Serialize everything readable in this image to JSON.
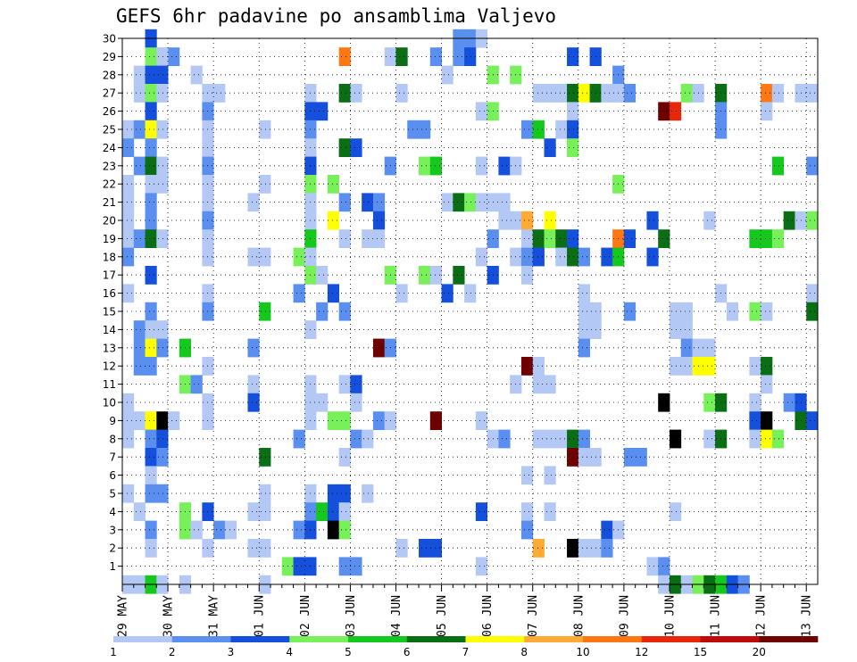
{
  "chart_data": {
    "type": "heatmap",
    "title": "GEFS 6hr padavine po ansamblima Valjevo",
    "x_ticks": [
      "29 MAY",
      "30 MAY",
      "31 MAY",
      "01 JUN",
      "02 JUN",
      "03 JUN",
      "04 JUN",
      "05 JUN",
      "06 JUN",
      "07 JUN",
      "08 JUN",
      "09 JUN",
      "10 JUN",
      "11 JUN",
      "12 JUN",
      "13 JUN"
    ],
    "y_ticks": [
      "1",
      "2",
      "3",
      "4",
      "5",
      "6",
      "7",
      "8",
      "9",
      "10",
      "11",
      "12",
      "13",
      "14",
      "15",
      "16",
      "17",
      "18",
      "19",
      "20",
      "21",
      "22",
      "23",
      "24",
      "25",
      "26",
      "27",
      "28",
      "29",
      "30"
    ],
    "ylim": [
      0,
      30
    ],
    "time_steps": 61,
    "grid": true,
    "colorbar": {
      "labels": [
        "1",
        "2",
        "3",
        "4",
        "5",
        "6",
        "7",
        "8",
        "10",
        "12",
        "15",
        "20"
      ],
      "colors": [
        "#b4c8f5",
        "#5a8ff0",
        "#1450dc",
        "#78f05a",
        "#14c81e",
        "#0a6e14",
        "#ffff00",
        "#ffaa32",
        "#ff7814",
        "#e6280a",
        "#be0a0a",
        "#6e0000"
      ]
    },
    "cells": [
      [
        2,
        30,
        3
      ],
      [
        29,
        30,
        2
      ],
      [
        30,
        30,
        2
      ],
      [
        31,
        30,
        1
      ],
      [
        3,
        29,
        1
      ],
      [
        4,
        29,
        2
      ],
      [
        2,
        29,
        4
      ],
      [
        3,
        29,
        1
      ],
      [
        19,
        29,
        9
      ],
      [
        23,
        29,
        1
      ],
      [
        24,
        29,
        6
      ],
      [
        27,
        29,
        2
      ],
      [
        29,
        29,
        2
      ],
      [
        30,
        29,
        3
      ],
      [
        39,
        29,
        3
      ],
      [
        41,
        29,
        3
      ],
      [
        1,
        28,
        1
      ],
      [
        2,
        28,
        3
      ],
      [
        3,
        28,
        3
      ],
      [
        6,
        28,
        1
      ],
      [
        28,
        28,
        1
      ],
      [
        32,
        28,
        4
      ],
      [
        34,
        28,
        4
      ],
      [
        43,
        28,
        2
      ],
      [
        1,
        27,
        1
      ],
      [
        2,
        27,
        4
      ],
      [
        3,
        27,
        1
      ],
      [
        7,
        27,
        1
      ],
      [
        8,
        27,
        1
      ],
      [
        16,
        27,
        1
      ],
      [
        19,
        27,
        6
      ],
      [
        20,
        27,
        1
      ],
      [
        24,
        27,
        1
      ],
      [
        36,
        27,
        1
      ],
      [
        37,
        27,
        1
      ],
      [
        38,
        27,
        1
      ],
      [
        39,
        27,
        6
      ],
      [
        40,
        27,
        7
      ],
      [
        41,
        27,
        6
      ],
      [
        42,
        27,
        1
      ],
      [
        43,
        27,
        1
      ],
      [
        44,
        27,
        2
      ],
      [
        49,
        27,
        4
      ],
      [
        50,
        27,
        1
      ],
      [
        52,
        27,
        6
      ],
      [
        56,
        27,
        9
      ],
      [
        57,
        27,
        1
      ],
      [
        59,
        27,
        1
      ],
      [
        60,
        27,
        1
      ],
      [
        2,
        26,
        3
      ],
      [
        7,
        26,
        2
      ],
      [
        16,
        26,
        3
      ],
      [
        17,
        26,
        3
      ],
      [
        31,
        26,
        1
      ],
      [
        32,
        26,
        4
      ],
      [
        39,
        26,
        1
      ],
      [
        47,
        26,
        12
      ],
      [
        48,
        26,
        10
      ],
      [
        52,
        26,
        2
      ],
      [
        56,
        26,
        1
      ],
      [
        0,
        25,
        1
      ],
      [
        1,
        25,
        2
      ],
      [
        2,
        25,
        7
      ],
      [
        3,
        25,
        1
      ],
      [
        7,
        25,
        1
      ],
      [
        12,
        25,
        1
      ],
      [
        16,
        25,
        2
      ],
      [
        25,
        25,
        2
      ],
      [
        26,
        25,
        2
      ],
      [
        35,
        25,
        2
      ],
      [
        36,
        25,
        5
      ],
      [
        38,
        25,
        1
      ],
      [
        39,
        25,
        3
      ],
      [
        52,
        25,
        2
      ],
      [
        0,
        24,
        2
      ],
      [
        2,
        24,
        2
      ],
      [
        7,
        24,
        1
      ],
      [
        16,
        24,
        1
      ],
      [
        19,
        24,
        6
      ],
      [
        20,
        24,
        3
      ],
      [
        37,
        24,
        3
      ],
      [
        39,
        24,
        4
      ],
      [
        1,
        23,
        2
      ],
      [
        2,
        23,
        6
      ],
      [
        3,
        23,
        1
      ],
      [
        7,
        23,
        2
      ],
      [
        16,
        23,
        3
      ],
      [
        23,
        23,
        2
      ],
      [
        26,
        23,
        4
      ],
      [
        27,
        23,
        5
      ],
      [
        31,
        23,
        1
      ],
      [
        33,
        23,
        3
      ],
      [
        34,
        23,
        1
      ],
      [
        57,
        23,
        5
      ],
      [
        60,
        23,
        2
      ],
      [
        0,
        22,
        1
      ],
      [
        2,
        22,
        1
      ],
      [
        3,
        22,
        1
      ],
      [
        7,
        22,
        1
      ],
      [
        12,
        22,
        1
      ],
      [
        16,
        22,
        4
      ],
      [
        18,
        22,
        4
      ],
      [
        43,
        22,
        4
      ],
      [
        0,
        21,
        1
      ],
      [
        2,
        21,
        2
      ],
      [
        7,
        21,
        1
      ],
      [
        11,
        21,
        1
      ],
      [
        16,
        21,
        1
      ],
      [
        19,
        21,
        2
      ],
      [
        21,
        21,
        3
      ],
      [
        22,
        21,
        2
      ],
      [
        28,
        21,
        1
      ],
      [
        29,
        21,
        6
      ],
      [
        30,
        21,
        4
      ],
      [
        31,
        21,
        1
      ],
      [
        32,
        21,
        1
      ],
      [
        33,
        21,
        1
      ],
      [
        0,
        20,
        1
      ],
      [
        2,
        20,
        2
      ],
      [
        7,
        20,
        2
      ],
      [
        16,
        20,
        1
      ],
      [
        18,
        20,
        7
      ],
      [
        22,
        20,
        3
      ],
      [
        33,
        20,
        1
      ],
      [
        34,
        20,
        1
      ],
      [
        35,
        20,
        8
      ],
      [
        37,
        20,
        7
      ],
      [
        46,
        20,
        3
      ],
      [
        51,
        20,
        1
      ],
      [
        58,
        20,
        6
      ],
      [
        59,
        20,
        1
      ],
      [
        60,
        20,
        4
      ],
      [
        0,
        19,
        1
      ],
      [
        1,
        19,
        2
      ],
      [
        2,
        19,
        6
      ],
      [
        3,
        19,
        1
      ],
      [
        7,
        19,
        1
      ],
      [
        16,
        19,
        5
      ],
      [
        19,
        19,
        1
      ],
      [
        21,
        19,
        1
      ],
      [
        22,
        19,
        1
      ],
      [
        32,
        19,
        2
      ],
      [
        35,
        19,
        1
      ],
      [
        36,
        19,
        6
      ],
      [
        37,
        19,
        4
      ],
      [
        38,
        19,
        6
      ],
      [
        39,
        19,
        3
      ],
      [
        43,
        19,
        9
      ],
      [
        44,
        19,
        3
      ],
      [
        47,
        19,
        6
      ],
      [
        55,
        19,
        5
      ],
      [
        56,
        19,
        5
      ],
      [
        57,
        19,
        4
      ],
      [
        0,
        18,
        2
      ],
      [
        7,
        18,
        1
      ],
      [
        11,
        18,
        1
      ],
      [
        12,
        18,
        1
      ],
      [
        15,
        18,
        4
      ],
      [
        16,
        18,
        1
      ],
      [
        31,
        18,
        1
      ],
      [
        34,
        18,
        1
      ],
      [
        35,
        18,
        2
      ],
      [
        36,
        18,
        3
      ],
      [
        38,
        18,
        1
      ],
      [
        39,
        18,
        6
      ],
      [
        40,
        18,
        2
      ],
      [
        42,
        18,
        3
      ],
      [
        43,
        18,
        5
      ],
      [
        46,
        18,
        3
      ],
      [
        2,
        17,
        3
      ],
      [
        16,
        17,
        4
      ],
      [
        17,
        17,
        1
      ],
      [
        23,
        17,
        4
      ],
      [
        26,
        17,
        4
      ],
      [
        27,
        17,
        1
      ],
      [
        29,
        17,
        6
      ],
      [
        32,
        17,
        3
      ],
      [
        35,
        17,
        1
      ],
      [
        0,
        16,
        1
      ],
      [
        7,
        16,
        1
      ],
      [
        15,
        16,
        2
      ],
      [
        18,
        16,
        3
      ],
      [
        24,
        16,
        1
      ],
      [
        28,
        16,
        3
      ],
      [
        30,
        16,
        1
      ],
      [
        40,
        16,
        1
      ],
      [
        52,
        16,
        1
      ],
      [
        60,
        16,
        1
      ],
      [
        2,
        15,
        2
      ],
      [
        7,
        15,
        2
      ],
      [
        12,
        15,
        5
      ],
      [
        17,
        15,
        2
      ],
      [
        19,
        15,
        2
      ],
      [
        40,
        15,
        1
      ],
      [
        41,
        15,
        1
      ],
      [
        44,
        15,
        2
      ],
      [
        48,
        15,
        1
      ],
      [
        49,
        15,
        1
      ],
      [
        53,
        15,
        1
      ],
      [
        55,
        15,
        4
      ],
      [
        56,
        15,
        1
      ],
      [
        60,
        15,
        6
      ],
      [
        1,
        14,
        2
      ],
      [
        2,
        14,
        1
      ],
      [
        3,
        14,
        1
      ],
      [
        16,
        14,
        1
      ],
      [
        40,
        14,
        1
      ],
      [
        41,
        14,
        1
      ],
      [
        48,
        14,
        1
      ],
      [
        49,
        14,
        1
      ],
      [
        1,
        13,
        2
      ],
      [
        2,
        13,
        7
      ],
      [
        3,
        13,
        2
      ],
      [
        5,
        13,
        5
      ],
      [
        11,
        13,
        2
      ],
      [
        22,
        13,
        12
      ],
      [
        23,
        13,
        2
      ],
      [
        40,
        13,
        2
      ],
      [
        49,
        13,
        2
      ],
      [
        50,
        13,
        1
      ],
      [
        51,
        13,
        1
      ],
      [
        1,
        12,
        2
      ],
      [
        2,
        12,
        2
      ],
      [
        7,
        12,
        1
      ],
      [
        35,
        12,
        12
      ],
      [
        36,
        12,
        1
      ],
      [
        48,
        12,
        1
      ],
      [
        49,
        12,
        1
      ],
      [
        50,
        12,
        7
      ],
      [
        51,
        12,
        7
      ],
      [
        55,
        12,
        1
      ],
      [
        56,
        12,
        6
      ],
      [
        5,
        11,
        4
      ],
      [
        6,
        11,
        2
      ],
      [
        11,
        11,
        1
      ],
      [
        16,
        11,
        1
      ],
      [
        19,
        11,
        1
      ],
      [
        20,
        11,
        3
      ],
      [
        34,
        11,
        1
      ],
      [
        36,
        11,
        1
      ],
      [
        37,
        11,
        1
      ],
      [
        56,
        11,
        1
      ],
      [
        0,
        10,
        1
      ],
      [
        7,
        10,
        1
      ],
      [
        11,
        10,
        3
      ],
      [
        16,
        10,
        1
      ],
      [
        17,
        10,
        1
      ],
      [
        20,
        10,
        1
      ],
      [
        47,
        10,
        14
      ],
      [
        51,
        10,
        4
      ],
      [
        52,
        10,
        6
      ],
      [
        55,
        10,
        1
      ],
      [
        58,
        10,
        2
      ],
      [
        59,
        10,
        3
      ],
      [
        0,
        9,
        1
      ],
      [
        1,
        9,
        1
      ],
      [
        2,
        9,
        7
      ],
      [
        3,
        9,
        13
      ],
      [
        4,
        9,
        1
      ],
      [
        7,
        9,
        1
      ],
      [
        16,
        9,
        1
      ],
      [
        18,
        9,
        4
      ],
      [
        19,
        9,
        4
      ],
      [
        22,
        9,
        2
      ],
      [
        23,
        9,
        1
      ],
      [
        27,
        9,
        12
      ],
      [
        31,
        9,
        1
      ],
      [
        55,
        9,
        3
      ],
      [
        56,
        9,
        13
      ],
      [
        59,
        9,
        6
      ],
      [
        60,
        9,
        3
      ],
      [
        0,
        8,
        1
      ],
      [
        2,
        8,
        2
      ],
      [
        3,
        8,
        3
      ],
      [
        15,
        8,
        2
      ],
      [
        20,
        8,
        2
      ],
      [
        21,
        8,
        1
      ],
      [
        32,
        8,
        1
      ],
      [
        33,
        8,
        2
      ],
      [
        36,
        8,
        1
      ],
      [
        37,
        8,
        1
      ],
      [
        38,
        8,
        1
      ],
      [
        39,
        8,
        6
      ],
      [
        40,
        8,
        2
      ],
      [
        48,
        8,
        13
      ],
      [
        51,
        8,
        1
      ],
      [
        52,
        8,
        6
      ],
      [
        55,
        8,
        1
      ],
      [
        56,
        8,
        7
      ],
      [
        57,
        8,
        4
      ],
      [
        2,
        7,
        3
      ],
      [
        3,
        7,
        2
      ],
      [
        12,
        7,
        6
      ],
      [
        19,
        7,
        1
      ],
      [
        39,
        7,
        12
      ],
      [
        40,
        7,
        1
      ],
      [
        41,
        7,
        1
      ],
      [
        44,
        7,
        2
      ],
      [
        45,
        7,
        2
      ],
      [
        2,
        6,
        1
      ],
      [
        35,
        6,
        1
      ],
      [
        37,
        6,
        1
      ],
      [
        0,
        5,
        1
      ],
      [
        2,
        5,
        2
      ],
      [
        3,
        5,
        2
      ],
      [
        12,
        5,
        1
      ],
      [
        16,
        5,
        1
      ],
      [
        18,
        5,
        3
      ],
      [
        19,
        5,
        3
      ],
      [
        21,
        5,
        1
      ],
      [
        1,
        4,
        1
      ],
      [
        5,
        4,
        4
      ],
      [
        7,
        4,
        3
      ],
      [
        11,
        4,
        1
      ],
      [
        12,
        4,
        1
      ],
      [
        16,
        4,
        2
      ],
      [
        17,
        4,
        5
      ],
      [
        18,
        4,
        3
      ],
      [
        19,
        4,
        1
      ],
      [
        31,
        4,
        3
      ],
      [
        35,
        4,
        1
      ],
      [
        37,
        4,
        1
      ],
      [
        48,
        4,
        1
      ],
      [
        2,
        3,
        2
      ],
      [
        5,
        3,
        4
      ],
      [
        6,
        3,
        1
      ],
      [
        8,
        3,
        2
      ],
      [
        9,
        3,
        1
      ],
      [
        15,
        3,
        2
      ],
      [
        16,
        3,
        3
      ],
      [
        18,
        3,
        13
      ],
      [
        19,
        3,
        4
      ],
      [
        35,
        3,
        2
      ],
      [
        42,
        3,
        3
      ],
      [
        43,
        3,
        1
      ],
      [
        2,
        2,
        1
      ],
      [
        7,
        2,
        1
      ],
      [
        11,
        2,
        1
      ],
      [
        12,
        2,
        1
      ],
      [
        24,
        2,
        1
      ],
      [
        26,
        2,
        3
      ],
      [
        27,
        2,
        3
      ],
      [
        36,
        2,
        8
      ],
      [
        39,
        2,
        13
      ],
      [
        40,
        2,
        1
      ],
      [
        41,
        2,
        1
      ],
      [
        42,
        2,
        2
      ],
      [
        14,
        1,
        4
      ],
      [
        15,
        1,
        3
      ],
      [
        16,
        1,
        3
      ],
      [
        19,
        1,
        2
      ],
      [
        20,
        1,
        2
      ],
      [
        31,
        1,
        1
      ],
      [
        46,
        1,
        1
      ],
      [
        47,
        1,
        2
      ],
      [
        0,
        0,
        1
      ],
      [
        1,
        0,
        1
      ],
      [
        2,
        0,
        5
      ],
      [
        3,
        0,
        1
      ],
      [
        5,
        0,
        1
      ],
      [
        12,
        0,
        1
      ],
      [
        47,
        0,
        1
      ],
      [
        48,
        0,
        6
      ],
      [
        49,
        0,
        1
      ],
      [
        50,
        0,
        4
      ],
      [
        51,
        0,
        6
      ],
      [
        52,
        0,
        5
      ],
      [
        53,
        0,
        3
      ],
      [
        54,
        0,
        2
      ]
    ]
  }
}
